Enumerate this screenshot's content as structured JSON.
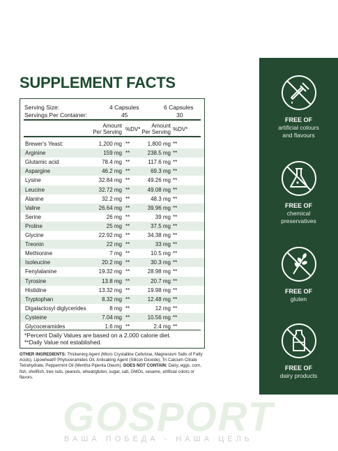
{
  "title": "SUPPLEMENT FACTS",
  "facts": {
    "serving_size_label": "Serving Size:",
    "servings_label": "Servings Per Container:",
    "col1_serving": "4 Capsules",
    "col1_servings": "45",
    "col2_serving": "6 Capsules",
    "col2_servings": "30",
    "amount_label": "Amount",
    "per_serving_label": "Per Serving",
    "dv_label": "%DV*",
    "rows": [
      {
        "name": "Brewer's Yeast:",
        "a1": "1,200 mg",
        "d1": "**",
        "a2": "1,800 mg",
        "d2": "**"
      },
      {
        "name": "Arginine",
        "a1": "159 mg",
        "d1": "**",
        "a2": "238.5 mg",
        "d2": "**"
      },
      {
        "name": "Glutamic acid",
        "a1": "78.4 mg",
        "d1": "**",
        "a2": "117.6 mg",
        "d2": "**"
      },
      {
        "name": "Aspargine",
        "a1": "46.2 mg",
        "d1": "**",
        "a2": "69.3 mg",
        "d2": "**"
      },
      {
        "name": "Lysine",
        "a1": "32.84 mg",
        "d1": "**",
        "a2": "49.26 mg",
        "d2": "**"
      },
      {
        "name": "Leucine",
        "a1": "32.72 mg",
        "d1": "**",
        "a2": "49.08 mg",
        "d2": "**"
      },
      {
        "name": "Alanine",
        "a1": "32.2 mg",
        "d1": "**",
        "a2": "48.3 mg",
        "d2": "**"
      },
      {
        "name": "Valine",
        "a1": "26.64 mg",
        "d1": "**",
        "a2": "39.96 mg",
        "d2": "**"
      },
      {
        "name": "Serine",
        "a1": "26 mg",
        "d1": "**",
        "a2": "39 mg",
        "d2": "**"
      },
      {
        "name": "Proline",
        "a1": "25 mg",
        "d1": "**",
        "a2": "37.5 mg",
        "d2": "**"
      },
      {
        "name": "Glycine",
        "a1": "22.92 mg",
        "d1": "**",
        "a2": "34.38 mg",
        "d2": "**"
      },
      {
        "name": "Treonin",
        "a1": "22 mg",
        "d1": "**",
        "a2": "33 mg",
        "d2": "**"
      },
      {
        "name": "Methionine",
        "a1": "7 mg",
        "d1": "**",
        "a2": "10.5 mg",
        "d2": "**"
      },
      {
        "name": "Isoleucine",
        "a1": "20.2 mg",
        "d1": "**",
        "a2": "30.3 mg",
        "d2": "**"
      },
      {
        "name": "Fenylalanine",
        "a1": "19.32 mg",
        "d1": "**",
        "a2": "28.98 mg",
        "d2": "**"
      },
      {
        "name": "Tyrosine",
        "a1": "13.8 mg",
        "d1": "**",
        "a2": "20.7 mg",
        "d2": "**"
      },
      {
        "name": "Histidine",
        "a1": "13.32 mg",
        "d1": "**",
        "a2": "19.98 mg",
        "d2": "**"
      },
      {
        "name": "Tryptophan",
        "a1": "8.32 mg",
        "d1": "**",
        "a2": "12.48 mg",
        "d2": "**"
      },
      {
        "name": "Digalactosyl diglycerides",
        "a1": "8 mg",
        "d1": "**",
        "a2": "12 mg",
        "d2": "**"
      },
      {
        "name": "Cysteine",
        "a1": "7.04 mg",
        "d1": "**",
        "a2": "10.56 mg",
        "d2": "**"
      },
      {
        "name": "Glycoceramides",
        "a1": "1.6 mg",
        "d1": "**",
        "a2": "2.4 mg",
        "d2": "**"
      }
    ],
    "footnote1": "*Percent Daily Values are based on a 2,000 calorie diet.",
    "footnote2": "**Daily Value not established."
  },
  "other": {
    "ingredients_label": "OTHER INGREDIENTS:",
    "ingredients_text": "Thickening Agent (Micro Crystalline Cellulose, Magnesium Salts of Fatty Acids), Lipowheat® Phytoceramides Oil, Anticaking Agent (Silicon Dioxide), Tri Calcium Citrate Tetrahydrate, Peppermint Oil (Mentha Piperita Oleum).",
    "not_contain_label": "DOES NOT CONTAIN:",
    "not_contain_text": "Dairy, eggs, corn, fish, shellfish, tree nuts, peanuts, wheat/gluten, sugar, salt, GMOs, sesame, artificial colors or flavors."
  },
  "features": [
    {
      "icon": "no-dropper-icon",
      "title": "FREE OF",
      "lines": [
        "artificial colours",
        "and flavours"
      ]
    },
    {
      "icon": "no-flask-icon",
      "title": "FREE OF",
      "lines": [
        "chemical",
        "preservatives"
      ]
    },
    {
      "icon": "no-wheat-icon",
      "title": "FREE OF",
      "lines": [
        "gluten"
      ]
    },
    {
      "icon": "no-milk-icon",
      "title": "FREE OF",
      "lines": [
        "dairy products"
      ]
    }
  ],
  "watermark": {
    "brand": "GOSPORT",
    "tagline": "ВАША ПОБЕДА - НАША ЦЕЛЬ"
  },
  "colors": {
    "brand_green": "#244a31",
    "title_green": "#1d4a2e",
    "row_shade": "#e4eee6"
  }
}
